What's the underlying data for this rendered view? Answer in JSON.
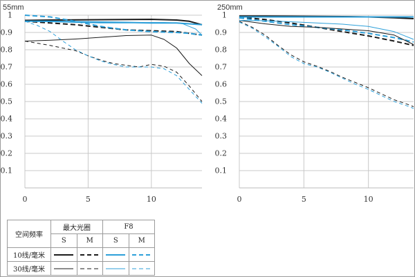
{
  "chart_data": [
    {
      "type": "line",
      "title": "55mm",
      "xlim": [
        0,
        14
      ],
      "ylim": [
        0,
        1
      ],
      "xticks": [
        "0",
        "5",
        "10"
      ],
      "yticks": [
        "0.1",
        "0.2",
        "0.3",
        "0.4",
        "0.5",
        "0.6",
        "0.7",
        "0.8",
        "0.9",
        "1"
      ],
      "grid": true,
      "series": [
        {
          "aperture": "max",
          "frequency": "10",
          "direction": "S",
          "color": "#1a1a1a",
          "width": 2.0,
          "dash": false,
          "x": [
            0,
            2,
            4,
            6,
            8,
            10,
            12,
            13,
            14
          ],
          "y": [
            0.97,
            0.972,
            0.973,
            0.974,
            0.975,
            0.976,
            0.972,
            0.965,
            0.945
          ]
        },
        {
          "aperture": "max",
          "frequency": "10",
          "direction": "M",
          "color": "#1a1a1a",
          "width": 2.0,
          "dash": true,
          "x": [
            0,
            2,
            4,
            6,
            8,
            10,
            12,
            13,
            14
          ],
          "y": [
            0.965,
            0.955,
            0.945,
            0.93,
            0.915,
            0.91,
            0.905,
            0.895,
            0.885
          ]
        },
        {
          "aperture": "F8",
          "frequency": "10",
          "direction": "S",
          "color": "#2c9fd9",
          "width": 2.0,
          "dash": false,
          "x": [
            0,
            2,
            4,
            6,
            8,
            10,
            11,
            12,
            13,
            14
          ],
          "y": [
            0.965,
            0.965,
            0.962,
            0.96,
            0.958,
            0.955,
            0.955,
            0.955,
            0.95,
            0.945
          ]
        },
        {
          "aperture": "F8",
          "frequency": "10",
          "direction": "M",
          "color": "#2c9fd9",
          "width": 2.0,
          "dash": true,
          "x": [
            0,
            2,
            4,
            6,
            8,
            10,
            12,
            13,
            14
          ],
          "y": [
            1.0,
            0.99,
            0.965,
            0.935,
            0.915,
            0.905,
            0.9,
            0.895,
            0.885
          ]
        },
        {
          "aperture": "max",
          "frequency": "30",
          "direction": "S",
          "color": "#1a1a1a",
          "width": 1.0,
          "dash": false,
          "x": [
            0,
            2,
            4,
            6,
            8,
            10,
            11,
            12,
            13,
            14
          ],
          "y": [
            0.85,
            0.855,
            0.862,
            0.872,
            0.882,
            0.885,
            0.86,
            0.81,
            0.72,
            0.65
          ]
        },
        {
          "aperture": "max",
          "frequency": "30",
          "direction": "M",
          "color": "#1a1a1a",
          "width": 1.0,
          "dash": true,
          "x": [
            0,
            2,
            4,
            5,
            6,
            7,
            8,
            9,
            10,
            11,
            12,
            13,
            14
          ],
          "y": [
            0.85,
            0.825,
            0.795,
            0.765,
            0.74,
            0.72,
            0.71,
            0.7,
            0.715,
            0.705,
            0.67,
            0.59,
            0.5
          ]
        },
        {
          "aperture": "F8",
          "frequency": "30",
          "direction": "S",
          "color": "#2c9fd9",
          "width": 1.0,
          "dash": false,
          "x": [
            0,
            2,
            4,
            6,
            8,
            10,
            11,
            12,
            12.5,
            13,
            13.5,
            14
          ],
          "y": [
            0.965,
            0.962,
            0.958,
            0.955,
            0.955,
            0.958,
            0.958,
            0.955,
            0.95,
            0.935,
            0.92,
            0.885
          ]
        },
        {
          "aperture": "F8",
          "frequency": "30",
          "direction": "M",
          "color": "#2c9fd9",
          "width": 1.0,
          "dash": true,
          "x": [
            0,
            1,
            2,
            3,
            4,
            5,
            6,
            7,
            8,
            9,
            10,
            11,
            12,
            13,
            14
          ],
          "y": [
            0.965,
            0.94,
            0.905,
            0.85,
            0.8,
            0.765,
            0.735,
            0.715,
            0.7,
            0.7,
            0.7,
            0.69,
            0.65,
            0.57,
            0.49
          ]
        }
      ]
    },
    {
      "type": "line",
      "title": "250mm",
      "xlim": [
        0,
        13.5
      ],
      "ylim": [
        0,
        1
      ],
      "xticks": [
        "0",
        "5",
        "10"
      ],
      "yticks": [
        "0.1",
        "0.2",
        "0.3",
        "0.4",
        "0.5",
        "0.6",
        "0.7",
        "0.8",
        "0.9",
        "1"
      ],
      "grid": true,
      "series": [
        {
          "aperture": "max",
          "frequency": "10",
          "direction": "S",
          "color": "#1a1a1a",
          "width": 2.0,
          "dash": false,
          "x": [
            0,
            2,
            4,
            6,
            8,
            10,
            12,
            13.5
          ],
          "y": [
            0.995,
            0.995,
            0.994,
            0.993,
            0.992,
            0.99,
            0.985,
            0.98
          ]
        },
        {
          "aperture": "max",
          "frequency": "10",
          "direction": "M",
          "color": "#1a1a1a",
          "width": 2.0,
          "dash": true,
          "x": [
            0,
            2,
            4,
            6,
            8,
            10,
            12,
            13.5
          ],
          "y": [
            0.99,
            0.975,
            0.955,
            0.93,
            0.905,
            0.88,
            0.85,
            0.825
          ]
        },
        {
          "aperture": "F8",
          "frequency": "10",
          "direction": "S",
          "color": "#2c9fd9",
          "width": 2.0,
          "dash": false,
          "x": [
            0,
            2,
            4,
            6,
            8,
            10,
            12,
            13.5
          ],
          "y": [
            0.99,
            0.99,
            0.99,
            0.99,
            0.99,
            0.99,
            0.99,
            0.99
          ]
        },
        {
          "aperture": "F8",
          "frequency": "10",
          "direction": "M",
          "color": "#2c9fd9",
          "width": 2.0,
          "dash": true,
          "x": [
            0,
            2,
            4,
            6,
            8,
            10,
            12,
            13.5
          ],
          "y": [
            0.985,
            0.965,
            0.945,
            0.93,
            0.915,
            0.895,
            0.87,
            0.845
          ]
        },
        {
          "aperture": "max",
          "frequency": "30",
          "direction": "S",
          "color": "#1a1a1a",
          "width": 1.0,
          "dash": false,
          "x": [
            0,
            2,
            4,
            6,
            8,
            10,
            12,
            13.5
          ],
          "y": [
            0.97,
            0.95,
            0.935,
            0.93,
            0.92,
            0.91,
            0.885,
            0.83
          ]
        },
        {
          "aperture": "max",
          "frequency": "30",
          "direction": "M",
          "color": "#1a1a1a",
          "width": 1.0,
          "dash": true,
          "x": [
            0,
            1,
            2,
            3,
            4,
            5,
            6,
            7,
            8,
            9,
            10,
            11,
            12,
            13,
            13.5
          ],
          "y": [
            0.965,
            0.93,
            0.885,
            0.825,
            0.77,
            0.73,
            0.705,
            0.675,
            0.64,
            0.61,
            0.58,
            0.545,
            0.51,
            0.485,
            0.47
          ]
        },
        {
          "aperture": "F8",
          "frequency": "30",
          "direction": "S",
          "color": "#2c9fd9",
          "width": 1.0,
          "dash": false,
          "x": [
            0,
            2,
            4,
            6,
            8,
            10,
            12,
            13,
            13.5
          ],
          "y": [
            0.97,
            0.968,
            0.962,
            0.955,
            0.948,
            0.935,
            0.905,
            0.875,
            0.86
          ]
        },
        {
          "aperture": "F8",
          "frequency": "30",
          "direction": "M",
          "color": "#2c9fd9",
          "width": 1.0,
          "dash": true,
          "x": [
            0,
            1,
            2,
            3,
            4,
            5,
            6,
            7,
            8,
            9,
            10,
            11,
            12,
            13,
            13.5
          ],
          "y": [
            0.96,
            0.925,
            0.875,
            0.82,
            0.76,
            0.72,
            0.7,
            0.67,
            0.635,
            0.6,
            0.57,
            0.535,
            0.5,
            0.475,
            0.46
          ]
        }
      ]
    }
  ],
  "legend": {
    "header_label": "空间频率",
    "max_aperture_label": "最大光圈",
    "f8_label": "F8",
    "s_label": "S",
    "m_label": "M",
    "rows": [
      {
        "label": "10线/毫米",
        "frequency": "10"
      },
      {
        "label": "30线/毫米",
        "frequency": "30"
      }
    ]
  }
}
